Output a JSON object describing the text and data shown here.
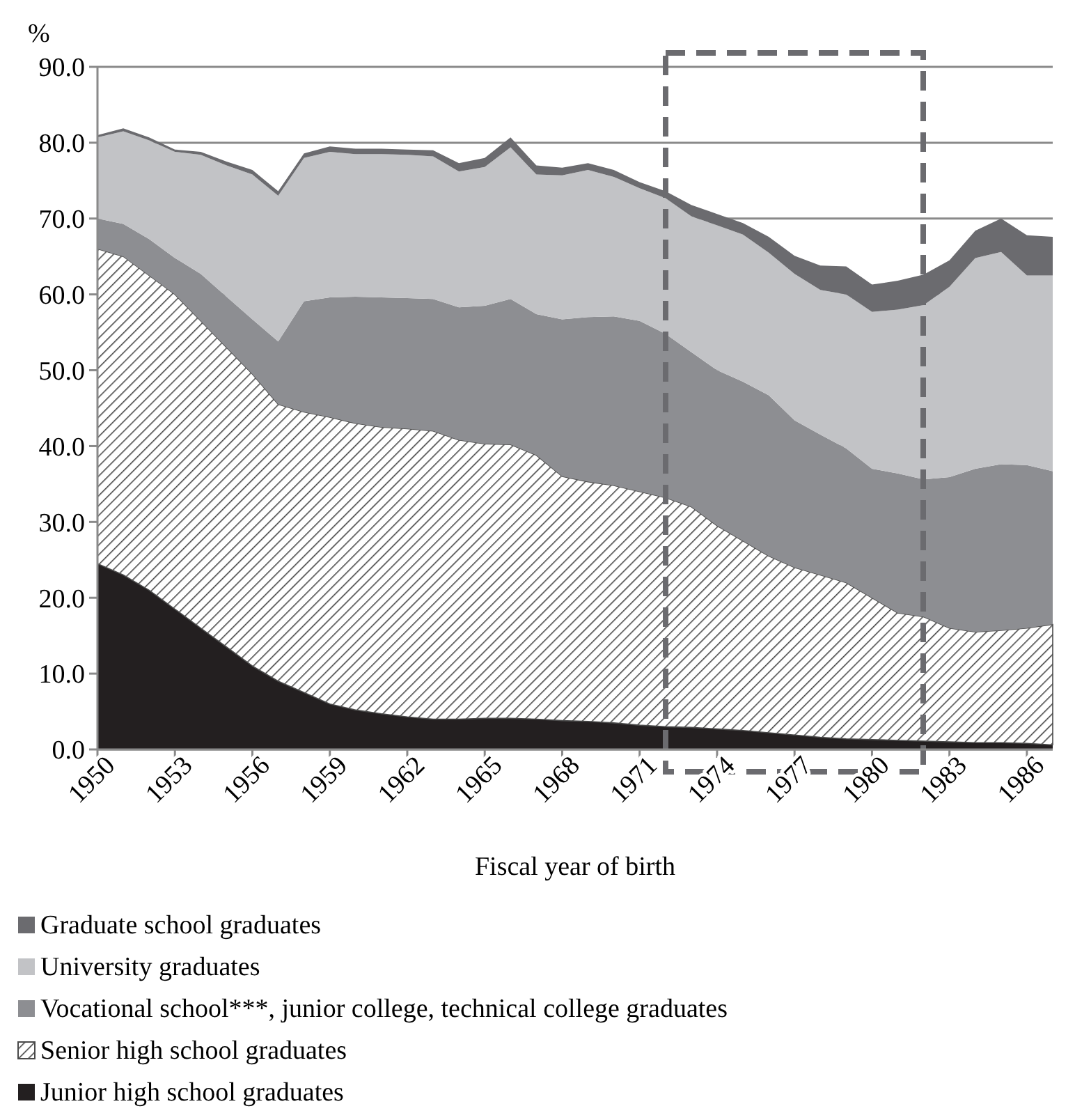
{
  "chart_data": {
    "type": "area",
    "stacked": true,
    "ylabel": "%",
    "xlabel": "Fiscal year of birth",
    "x": [
      1950,
      1951,
      1952,
      1953,
      1954,
      1955,
      1956,
      1957,
      1958,
      1959,
      1960,
      1961,
      1962,
      1963,
      1964,
      1965,
      1966,
      1967,
      1968,
      1969,
      1970,
      1971,
      1972,
      1973,
      1974,
      1975,
      1976,
      1977,
      1978,
      1979,
      1980,
      1981,
      1982,
      1983,
      1984,
      1985,
      1986,
      1987
    ],
    "series": [
      {
        "name": "Junior high school graduates",
        "color": "#231f20",
        "values": [
          24.5,
          23.0,
          21.0,
          18.5,
          16.0,
          13.5,
          11.0,
          9.0,
          7.5,
          6.0,
          5.2,
          4.7,
          4.3,
          4.0,
          4.0,
          4.1,
          4.1,
          4.0,
          3.8,
          3.7,
          3.5,
          3.2,
          3.0,
          2.9,
          2.7,
          2.5,
          2.2,
          1.9,
          1.6,
          1.4,
          1.3,
          1.2,
          1.1,
          1.0,
          0.9,
          0.9,
          0.8,
          0.6
        ]
      },
      {
        "name": "Senior high school graduates",
        "color": "#4a4a4a",
        "values": [
          41.5,
          42.0,
          41.5,
          41.5,
          40.5,
          39.5,
          38.5,
          36.5,
          37.0,
          37.8,
          37.8,
          37.8,
          38.0,
          38.0,
          36.8,
          36.2,
          36.1,
          34.8,
          32.2,
          31.6,
          31.3,
          30.8,
          30.2,
          29.1,
          26.8,
          25.0,
          23.3,
          22.1,
          21.4,
          20.6,
          18.7,
          16.8,
          16.4,
          15.0,
          14.6,
          14.8,
          15.2,
          15.9
        ]
      },
      {
        "name": "Vocational school***, junior college, technical college graduates",
        "color": "#8d8e92",
        "values": [
          4.0,
          4.3,
          4.8,
          4.8,
          6.2,
          6.7,
          7.2,
          8.3,
          14.6,
          15.8,
          16.7,
          17.1,
          17.2,
          17.4,
          17.5,
          18.2,
          19.2,
          18.6,
          20.7,
          21.7,
          22.3,
          22.5,
          21.6,
          20.4,
          20.5,
          21.0,
          21.2,
          19.4,
          18.5,
          17.7,
          17.0,
          18.4,
          18.1,
          19.9,
          21.5,
          21.9,
          21.5,
          20.2
        ]
      },
      {
        "name": "University graduates",
        "color": "#c2c3c6",
        "values": [
          10.7,
          12.2,
          13.0,
          14.0,
          15.7,
          17.3,
          19.1,
          19.2,
          18.9,
          19.2,
          18.8,
          18.9,
          18.9,
          18.8,
          17.9,
          18.3,
          20.0,
          18.4,
          19.0,
          19.4,
          18.4,
          17.5,
          17.9,
          17.9,
          19.1,
          19.4,
          18.8,
          19.3,
          19.1,
          20.3,
          20.7,
          21.6,
          23.0,
          25.1,
          27.8,
          28.0,
          25.0,
          25.8
        ]
      },
      {
        "name": "Graduate school graduates",
        "color": "#6b6b6f",
        "values": [
          0.3,
          0.4,
          0.4,
          0.3,
          0.4,
          0.5,
          0.6,
          0.6,
          0.6,
          0.7,
          0.7,
          0.7,
          0.7,
          0.8,
          1.1,
          1.2,
          1.3,
          1.2,
          1.0,
          0.9,
          0.9,
          0.8,
          0.9,
          1.5,
          1.5,
          1.5,
          2.1,
          2.4,
          3.2,
          3.7,
          3.6,
          3.8,
          4.0,
          3.5,
          3.6,
          4.4,
          5.3,
          5.1
        ]
      }
    ],
    "xlim": [
      1950,
      1987
    ],
    "xticks": [
      1950,
      1953,
      1956,
      1959,
      1962,
      1965,
      1968,
      1971,
      1974,
      1977,
      1980,
      1983,
      1986
    ],
    "ylim": [
      0,
      90
    ],
    "yticks": [
      {
        "value": 0,
        "label": "0.0"
      },
      {
        "value": 10,
        "label": "10.0"
      },
      {
        "value": 20,
        "label": "20.0"
      },
      {
        "value": 30,
        "label": "30.0"
      },
      {
        "value": 40,
        "label": "40.0"
      },
      {
        "value": 50,
        "label": "50.0"
      },
      {
        "value": 60,
        "label": "60.0"
      },
      {
        "value": 70,
        "label": "70.0"
      },
      {
        "value": 80,
        "label": "80.0"
      },
      {
        "value": 90,
        "label": "90.0"
      }
    ],
    "grid": "y",
    "legend": "bottom"
  }
}
